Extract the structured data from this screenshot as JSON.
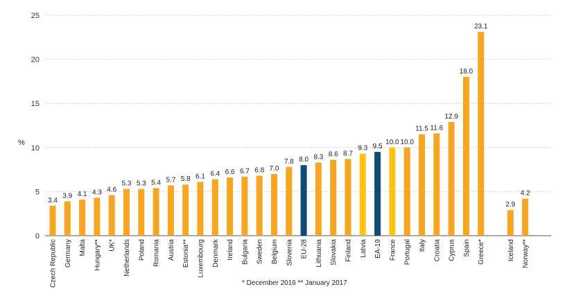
{
  "chart_data": {
    "type": "bar",
    "title": "",
    "xlabel": "",
    "ylabel": "%",
    "ylim": [
      0,
      25
    ],
    "yticks": [
      0,
      5,
      10,
      15,
      20,
      25
    ],
    "grid": true,
    "legend": "none",
    "categories": [
      "Czech Republic",
      "Germany",
      "Malta",
      "Hungary**",
      "UK*",
      "Netherlands",
      "Poland",
      "Romania",
      "Austria",
      "Estonia**",
      "Luxembourg",
      "Denmark",
      "Ireland",
      "Bulgaria",
      "Sweden",
      "Belgium",
      "Slovenia",
      "EU-28",
      "Lithuania",
      "Slovakia",
      "Finland",
      "Latvia",
      "EA-19",
      "France",
      "Portugal",
      "Italy",
      "Croatia",
      "Cyprus",
      "Spain",
      "Greece*",
      "",
      "Iceland",
      "Norway**"
    ],
    "values": [
      3.4,
      3.9,
      4.1,
      4.3,
      4.6,
      5.3,
      5.3,
      5.4,
      5.7,
      5.8,
      6.1,
      6.4,
      6.6,
      6.7,
      6.8,
      7.0,
      7.8,
      8.0,
      8.3,
      8.6,
      8.7,
      9.3,
      9.5,
      10.0,
      10.0,
      11.5,
      11.6,
      12.9,
      18.0,
      23.1,
      null,
      2.9,
      4.2
    ],
    "value_labels": [
      "3.4",
      "3.9",
      "4.1",
      "4.3",
      "4.6",
      "5.3",
      "5.3",
      "5.4",
      "5.7",
      "5.8",
      "6.1",
      "6.4",
      "6.6",
      "6.7",
      "6.8",
      "7.0",
      "7.8",
      "8.0",
      "8.3",
      "8.6",
      "8.7",
      "9.3",
      "9.5",
      "10.0",
      "10.0",
      "11.5",
      "11.6",
      "12.9",
      "18.0",
      "23.1",
      "",
      "2.9",
      "4.2"
    ],
    "colors": {
      "default": "#F5A623",
      "aggregate": "#0E4C75",
      "highlight": "#FCC314"
    },
    "bar_color_keys": [
      "default",
      "default",
      "default",
      "default",
      "default",
      "default",
      "default",
      "default",
      "default",
      "default",
      "default",
      "default",
      "default",
      "default",
      "default",
      "default",
      "default",
      "aggregate",
      "default",
      "default",
      "default",
      "highlight",
      "aggregate",
      "highlight",
      "default",
      "default",
      "default",
      "default",
      "default",
      "default",
      "none",
      "default",
      "default"
    ],
    "footnote": "*  December  2016     ** January 2017"
  }
}
